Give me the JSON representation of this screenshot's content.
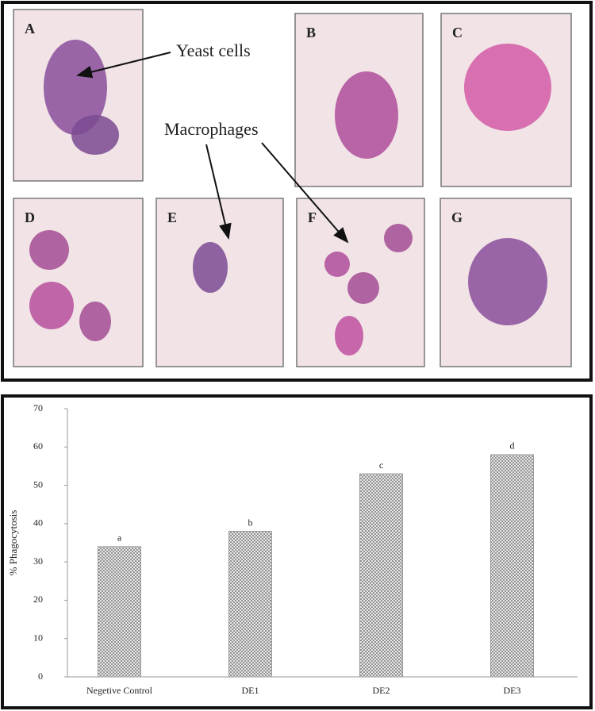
{
  "figure": {
    "panels": [
      "A",
      "B",
      "C",
      "D",
      "E",
      "F",
      "G"
    ],
    "annotations": [
      "Yeast cells",
      "Macrophages"
    ]
  },
  "chart_data": {
    "type": "bar",
    "ylabel": "% Phagocytosis",
    "categories": [
      "Negetive Control",
      "DE1",
      "DE2",
      "DE3"
    ],
    "values": [
      34,
      38,
      53,
      58
    ],
    "annotations": [
      "a",
      "b",
      "c",
      "d"
    ],
    "color": "#9a9a9a",
    "ylim": [
      0,
      70
    ],
    "yticks": [
      0,
      10,
      20,
      30,
      40,
      50,
      60,
      70
    ],
    "grid": false
  }
}
